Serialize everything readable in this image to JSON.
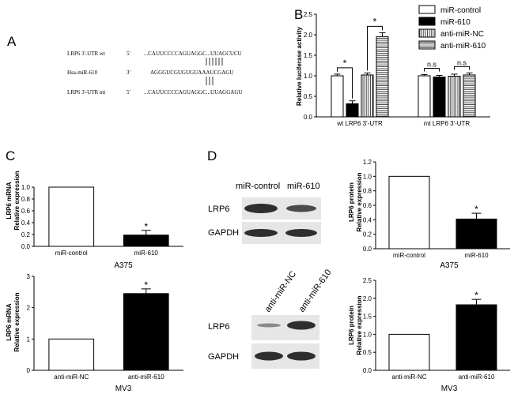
{
  "panels": {
    "A": {
      "letter": "A",
      "rows": [
        {
          "label": "LRP6 3'-UTR wt",
          "dir": "5'",
          "seq": "...CAUUCCCCAGUAGGC...UUAGCUCU"
        },
        {
          "label": "Hsa-miR-610",
          "dir": "3'",
          "seq": "AGGGUCGUGUGUAAAUCGAGU"
        },
        {
          "label": "LRP6 3'-UTR mt",
          "dir": "5'",
          "seq": "...CAUUCCCCAGUAGGC...UUAGGAGU"
        }
      ]
    },
    "B": {
      "letter": "B"
    },
    "C": {
      "letter": "C",
      "top_sub": "A375",
      "bottom_sub": "MV3"
    },
    "D": {
      "letter": "D",
      "top_sub": "A375",
      "bottom_sub": "MV3",
      "blot_top": {
        "lanes": [
          "miR-control",
          "miR-610"
        ],
        "rows": [
          "LRP6",
          "GAPDH"
        ]
      },
      "blot_bottom": {
        "lanes": [
          "anti-miR-NC",
          "anti-miR-610"
        ],
        "rows": [
          "LRP6",
          "GAPDH"
        ]
      }
    }
  },
  "chart_data": [
    {
      "id": "B",
      "type": "bar",
      "ylabel": "Relative luciferase activity",
      "ylim": [
        0,
        2.5
      ],
      "yticks": [
        "0.0",
        "0.5",
        "1.0",
        "1.5",
        "2.0",
        "2.5"
      ],
      "groups": [
        "wt LRP6 3'-UTR",
        "mt LRP6 3'-UTR"
      ],
      "series": [
        {
          "name": "miR-control",
          "values": [
            1.0,
            1.0
          ],
          "errors": [
            0.04,
            0.03
          ],
          "pattern": "open"
        },
        {
          "name": "miR-610",
          "values": [
            0.32,
            0.97
          ],
          "errors": [
            0.07,
            0.04
          ],
          "pattern": "solid"
        },
        {
          "name": "anti-miR-NC",
          "values": [
            1.02,
            0.99
          ],
          "errors": [
            0.05,
            0.05
          ],
          "pattern": "vlines"
        },
        {
          "name": "anti-miR-610",
          "values": [
            1.95,
            1.02
          ],
          "errors": [
            0.1,
            0.05
          ],
          "pattern": "hlines"
        }
      ],
      "legend_position": "top-right",
      "annotations": [
        {
          "text": "*",
          "group": 0,
          "from": 0,
          "to": 1
        },
        {
          "text": "*",
          "group": 0,
          "from": 2,
          "to": 3
        },
        {
          "text": "n.s",
          "group": 1,
          "from": 0,
          "to": 1
        },
        {
          "text": "n.s",
          "group": 1,
          "from": 2,
          "to": 3
        }
      ]
    },
    {
      "id": "C-top",
      "type": "bar",
      "ylabel_line1": "LRP6 mRNA",
      "ylabel_line2": "Relative expression",
      "ylim": [
        0,
        1.0
      ],
      "yticks": [
        "0.0",
        "0.2",
        "0.4",
        "0.6",
        "0.8",
        "1.0"
      ],
      "categories": [
        "miR-control",
        "miR-610"
      ],
      "values": [
        1.0,
        0.19
      ],
      "errors": [
        0,
        0.08
      ],
      "fills": [
        "open",
        "solid"
      ],
      "star": "*"
    },
    {
      "id": "C-bottom",
      "type": "bar",
      "ylabel_line1": "LRP6 mRNA",
      "ylabel_line2": "Relative expression",
      "ylim": [
        0,
        3
      ],
      "yticks": [
        "0",
        "1",
        "2",
        "3"
      ],
      "categories": [
        "anti-miR-NC",
        "anti-miR-610"
      ],
      "values": [
        1.0,
        2.45
      ],
      "errors": [
        0,
        0.15
      ],
      "fills": [
        "open",
        "solid"
      ],
      "star": "*"
    },
    {
      "id": "D-top",
      "type": "bar",
      "ylabel_line1": "LRP6 protein",
      "ylabel_line2": "Relative expression",
      "ylim": [
        0,
        1.2
      ],
      "yticks": [
        "0.0",
        "0.2",
        "0.4",
        "0.6",
        "0.8",
        "1.0",
        "1.2"
      ],
      "categories": [
        "miR-control",
        "miR-610"
      ],
      "values": [
        1.0,
        0.41
      ],
      "errors": [
        0,
        0.08
      ],
      "fills": [
        "open",
        "solid"
      ],
      "star": "*"
    },
    {
      "id": "D-bottom",
      "type": "bar",
      "ylabel_line1": "LRP6 protein",
      "ylabel_line2": "Relative expression",
      "ylim": [
        0,
        2.5
      ],
      "yticks": [
        "0.0",
        "0.5",
        "1.0",
        "1.5",
        "2.0",
        "2.5"
      ],
      "categories": [
        "anti-miR-NC",
        "anti-miR-610"
      ],
      "values": [
        1.0,
        1.82
      ],
      "errors": [
        0,
        0.15
      ],
      "fills": [
        "open",
        "solid"
      ],
      "star": "*"
    }
  ]
}
